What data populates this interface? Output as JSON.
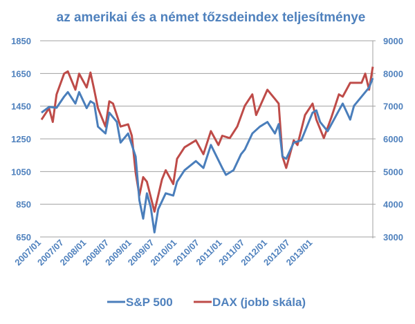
{
  "chart_data": {
    "type": "line",
    "title": "az amerikai és a német tőzsdeindex teljesítménye",
    "xlabel": "",
    "ylabel": "",
    "y_left": {
      "lim": [
        650,
        1850
      ],
      "ticks": [
        "650",
        "850",
        "1050",
        "1250",
        "1450",
        "1650",
        "1850"
      ]
    },
    "y_right": {
      "lim": [
        3000,
        9000
      ],
      "ticks": [
        "3000",
        "4000",
        "5000",
        "6000",
        "7000",
        "8000",
        "9000"
      ]
    },
    "x_ticks": [
      "2007/01",
      "2007/07",
      "2008/01",
      "2008/07",
      "2009/01",
      "2009/07",
      "2010/01",
      "2010/07",
      "2011/01",
      "2011/07",
      "2012/01",
      "2012/07",
      "2013/01"
    ],
    "grid": "horizontal",
    "legend": "bottom",
    "colors": {
      "title": "#4F81BD",
      "axis_text": "#4F81BD",
      "grid": "#A0A0A0"
    },
    "series": [
      {
        "name": "S&P 500",
        "axis": "left",
        "color": "#4A7EBB",
        "points": [
          [
            "2007/01",
            1410
          ],
          [
            "2007/03",
            1445
          ],
          [
            "2007/05",
            1440
          ],
          [
            "2007/07",
            1508
          ],
          [
            "2007/08",
            1536
          ],
          [
            "2007/10",
            1466
          ],
          [
            "2007/11",
            1536
          ],
          [
            "2008/01",
            1438
          ],
          [
            "2008/02",
            1480
          ],
          [
            "2008/03",
            1466
          ],
          [
            "2008/04",
            1325
          ],
          [
            "2008/06",
            1283
          ],
          [
            "2008/07",
            1410
          ],
          [
            "2008/09",
            1354
          ],
          [
            "2008/10",
            1227
          ],
          [
            "2008/12",
            1283
          ],
          [
            "2009/02",
            1142
          ],
          [
            "2009/03",
            875
          ],
          [
            "2009/04",
            762
          ],
          [
            "2009/05",
            917
          ],
          [
            "2009/06",
            833
          ],
          [
            "2009/07",
            678
          ],
          [
            "2009/08",
            819
          ],
          [
            "2009/10",
            917
          ],
          [
            "2009/12",
            903
          ],
          [
            "2010/01",
            988
          ],
          [
            "2010/03",
            1058
          ],
          [
            "2010/06",
            1114
          ],
          [
            "2010/08",
            1072
          ],
          [
            "2010/10",
            1213
          ],
          [
            "2011/01",
            1072
          ],
          [
            "2011/02",
            1030
          ],
          [
            "2011/04",
            1058
          ],
          [
            "2011/06",
            1156
          ],
          [
            "2011/07",
            1184
          ],
          [
            "2011/09",
            1283
          ],
          [
            "2011/11",
            1325
          ],
          [
            "2012/01",
            1353
          ],
          [
            "2012/03",
            1283
          ],
          [
            "2012/04",
            1340
          ],
          [
            "2012/05",
            1142
          ],
          [
            "2012/06",
            1128
          ],
          [
            "2012/08",
            1227
          ],
          [
            "2012/10",
            1241
          ],
          [
            "2012/11",
            1297
          ],
          [
            "2013/01",
            1410
          ],
          [
            "2013/02",
            1424
          ],
          [
            "2013/03",
            1353
          ],
          [
            "2013/05",
            1297
          ],
          [
            "2013/07",
            1382
          ],
          [
            "2013/08",
            1424
          ],
          [
            "2013/09",
            1466
          ],
          [
            "2013/11",
            1368
          ],
          [
            "2013/12",
            1452
          ],
          [
            "2014/02",
            1508
          ],
          [
            "2014/04",
            1564
          ],
          [
            "2014/05",
            1621
          ]
        ]
      },
      {
        "name": "DAX (jobb skála)",
        "axis": "right",
        "color": "#BE4B48",
        "points": [
          [
            "2007/01",
            6587
          ],
          [
            "2007/03",
            6939
          ],
          [
            "2007/04",
            6517
          ],
          [
            "2007/05",
            7361
          ],
          [
            "2007/07",
            7994
          ],
          [
            "2007/08",
            8064
          ],
          [
            "2007/10",
            7502
          ],
          [
            "2007/11",
            7994
          ],
          [
            "2008/01",
            7572
          ],
          [
            "2008/02",
            8029
          ],
          [
            "2008/03",
            7502
          ],
          [
            "2008/04",
            6939
          ],
          [
            "2008/06",
            6376
          ],
          [
            "2008/07",
            7150
          ],
          [
            "2008/08",
            7080
          ],
          [
            "2008/10",
            6376
          ],
          [
            "2008/12",
            6446
          ],
          [
            "2009/01",
            6095
          ],
          [
            "2009/02",
            4970
          ],
          [
            "2009/03",
            4266
          ],
          [
            "2009/04",
            4829
          ],
          [
            "2009/05",
            4689
          ],
          [
            "2009/07",
            3774
          ],
          [
            "2009/09",
            4759
          ],
          [
            "2009/10",
            5040
          ],
          [
            "2009/12",
            4618
          ],
          [
            "2010/01",
            5391
          ],
          [
            "2010/03",
            5743
          ],
          [
            "2010/06",
            5954
          ],
          [
            "2010/08",
            5532
          ],
          [
            "2010/10",
            6236
          ],
          [
            "2010/12",
            5813
          ],
          [
            "2011/01",
            6095
          ],
          [
            "2011/03",
            6024
          ],
          [
            "2011/05",
            6376
          ],
          [
            "2011/07",
            7010
          ],
          [
            "2011/09",
            7361
          ],
          [
            "2011/10",
            6728
          ],
          [
            "2012/01",
            7502
          ],
          [
            "2012/03",
            7221
          ],
          [
            "2012/04",
            7080
          ],
          [
            "2012/05",
            5462
          ],
          [
            "2012/06",
            5110
          ],
          [
            "2012/08",
            5954
          ],
          [
            "2012/09",
            5813
          ],
          [
            "2012/11",
            6728
          ],
          [
            "2013/01",
            7080
          ],
          [
            "2013/02",
            6587
          ],
          [
            "2013/04",
            6024
          ],
          [
            "2013/06",
            6657
          ],
          [
            "2013/08",
            7361
          ],
          [
            "2013/09",
            7291
          ],
          [
            "2013/11",
            7713
          ],
          [
            "2014/02",
            7713
          ],
          [
            "2014/03",
            7994
          ],
          [
            "2014/04",
            7502
          ],
          [
            "2014/05",
            8205
          ]
        ]
      }
    ]
  }
}
